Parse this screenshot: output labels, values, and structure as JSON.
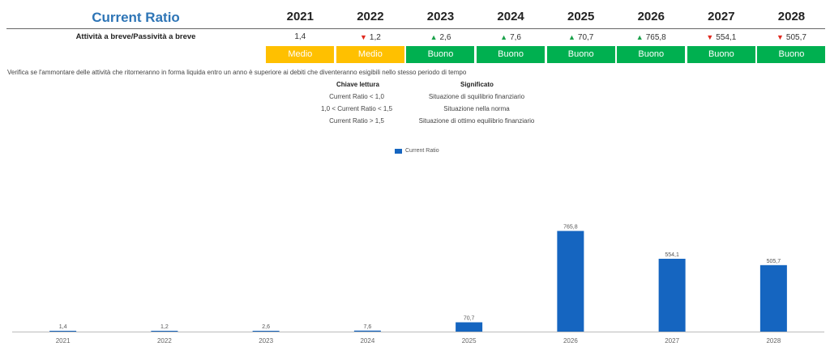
{
  "header": {
    "title": "Current Ratio",
    "years": [
      "2021",
      "2022",
      "2023",
      "2024",
      "2025",
      "2026",
      "2027",
      "2028"
    ]
  },
  "metric": {
    "label": "Attività a breve/Passività a breve",
    "values": [
      {
        "text": "1,4",
        "trend": "none"
      },
      {
        "text": "1,2",
        "trend": "down"
      },
      {
        "text": "2,6",
        "trend": "up"
      },
      {
        "text": "7,6",
        "trend": "up"
      },
      {
        "text": "70,7",
        "trend": "up"
      },
      {
        "text": "765,8",
        "trend": "up"
      },
      {
        "text": "554,1",
        "trend": "down"
      },
      {
        "text": "505,7",
        "trend": "down"
      }
    ],
    "ratings": [
      {
        "text": "Medio",
        "color": "#ffc000"
      },
      {
        "text": "Medio",
        "color": "#ffc000"
      },
      {
        "text": "Buono",
        "color": "#00b050"
      },
      {
        "text": "Buono",
        "color": "#00b050"
      },
      {
        "text": "Buono",
        "color": "#00b050"
      },
      {
        "text": "Buono",
        "color": "#00b050"
      },
      {
        "text": "Buono",
        "color": "#00b050"
      },
      {
        "text": "Buono",
        "color": "#00b050"
      }
    ]
  },
  "note": "Verifica se l'ammontare delle attività che ritorneranno in forma liquida entro un anno è superiore ai debiti che diventeranno esigibili nello stesso periodo di tempo",
  "key": {
    "head_key": "Chiave lettura",
    "head_meaning": "Significato",
    "rows": [
      {
        "key": "Current Ratio < 1,0",
        "meaning": "Situazione di squilibrio finanziario"
      },
      {
        "key": "1,0 < Current Ratio < 1,5",
        "meaning": "Situazione nella norma"
      },
      {
        "key": "Current Ratio > 1,5",
        "meaning": "Situazione di ottimo equilibrio finanziario"
      }
    ]
  },
  "chart_data": {
    "type": "bar",
    "categories": [
      "2021",
      "2022",
      "2023",
      "2024",
      "2025",
      "2026",
      "2027",
      "2028"
    ],
    "series": [
      {
        "name": "Current Ratio",
        "values": [
          1.4,
          1.2,
          2.6,
          7.6,
          70.7,
          765.8,
          554.1,
          505.7
        ],
        "labels": [
          "1,4",
          "1,2",
          "2,6",
          "7,6",
          "70,7",
          "765,8",
          "554,1",
          "505,7"
        ]
      }
    ],
    "ylim": [
      0,
      800
    ],
    "grid": false,
    "legend": "top-center",
    "bar_color": "#1565c0"
  }
}
